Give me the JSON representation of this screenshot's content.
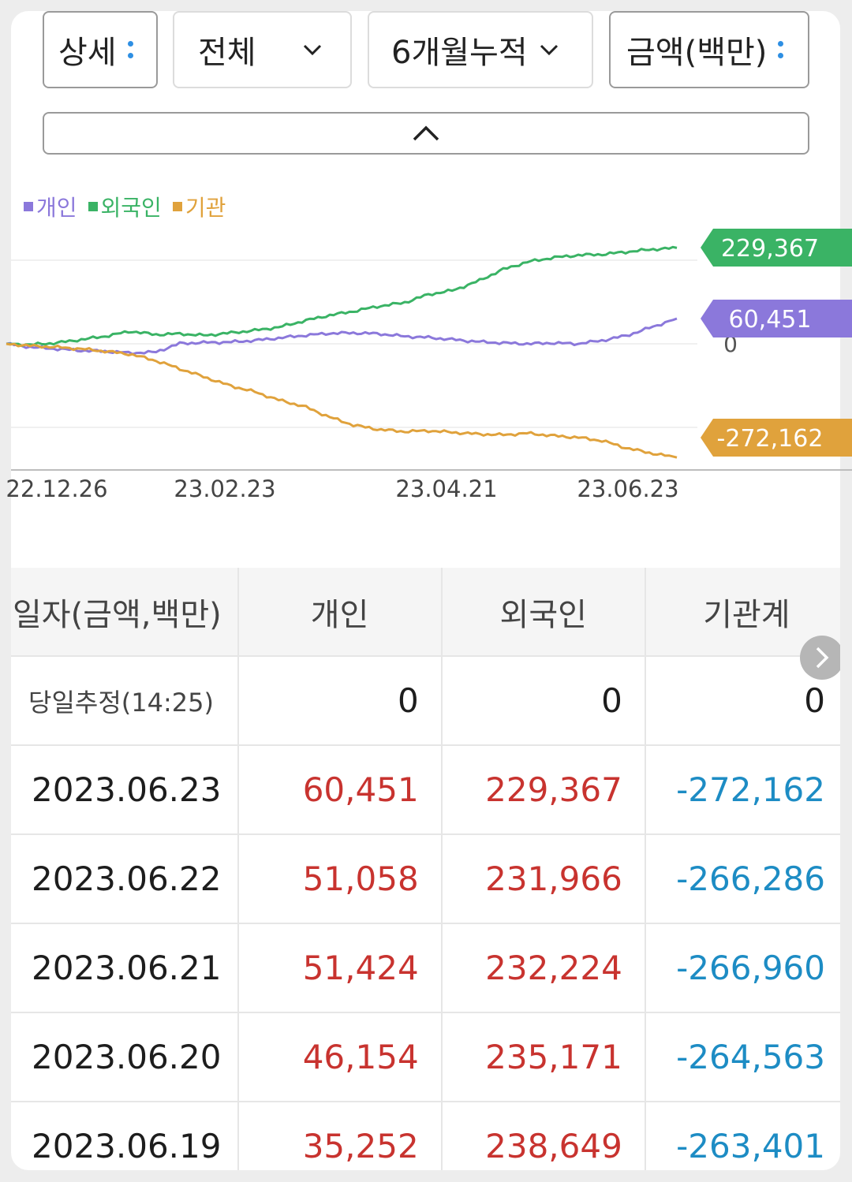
{
  "controls": {
    "view": "상세",
    "scope": "전체",
    "period": "6개월누적",
    "unit": "금액(백만)"
  },
  "chart_data": {
    "type": "line",
    "series": [
      {
        "name": "개인",
        "color": "#8b78db",
        "last_value": 60451,
        "values_k": [
          0,
          -8,
          -12,
          -16,
          -18,
          -22,
          -20,
          1,
          3,
          4,
          8,
          14,
          20,
          25,
          26,
          24,
          18,
          15,
          10,
          5,
          2,
          0,
          2,
          0,
          8,
          20,
          40,
          60.451
        ]
      },
      {
        "name": "외국인",
        "color": "#3ab365",
        "last_value": 229367,
        "values_k": [
          0,
          -2,
          2,
          10,
          18,
          30,
          22,
          24,
          20,
          26,
          32,
          40,
          55,
          68,
          78,
          90,
          98,
          118,
          128,
          150,
          178,
          196,
          206,
          212,
          214,
          220,
          226,
          229.367
        ]
      },
      {
        "name": "기관",
        "color": "#e0a23c",
        "last_value": -272162,
        "values_k": [
          0,
          -5,
          -8,
          -12,
          -18,
          -25,
          -40,
          -60,
          -80,
          -100,
          -115,
          -135,
          -150,
          -175,
          -195,
          -205,
          -210,
          -208,
          -212,
          -216,
          -218,
          -214,
          -220,
          -224,
          -232,
          -250,
          -262,
          -272.162
        ]
      }
    ],
    "legend": [
      "개인",
      "외국인",
      "기관"
    ],
    "x_tick_labels": [
      "22.12.26",
      "23.02.23",
      "23.04.21",
      "23.06.23"
    ],
    "y_zero_label": "0",
    "end_labels": [
      "229,367",
      "60,451",
      "-272,162"
    ]
  },
  "table": {
    "headers": [
      "일자(금액,백만)",
      "개인",
      "외국인",
      "기관계"
    ],
    "estimate_row": {
      "label": "당일추정(14:25)",
      "values": [
        "0",
        "0",
        "0"
      ]
    },
    "rows": [
      {
        "date": "2023.06.23",
        "individual": "60,451",
        "foreign": "229,367",
        "institution": "-272,162"
      },
      {
        "date": "2023.06.22",
        "individual": "51,058",
        "foreign": "231,966",
        "institution": "-266,286"
      },
      {
        "date": "2023.06.21",
        "individual": "51,424",
        "foreign": "232,224",
        "institution": "-266,960"
      },
      {
        "date": "2023.06.20",
        "individual": "46,154",
        "foreign": "235,171",
        "institution": "-264,563"
      },
      {
        "date": "2023.06.19",
        "individual": "35,252",
        "foreign": "238,649",
        "institution": "-263,401"
      }
    ]
  }
}
